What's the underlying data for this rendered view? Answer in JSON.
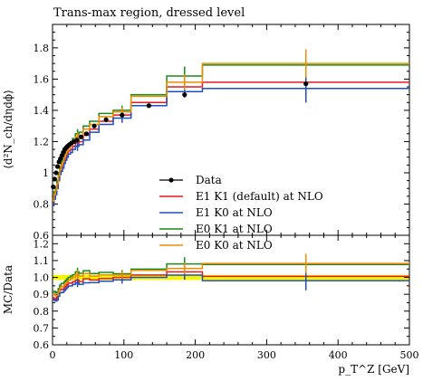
{
  "chart_data": {
    "type": "line",
    "title": "Trans-max region, dressed level",
    "ylabel_main": "⟨d²N_ch/dηdϕ⟩",
    "ylabel_ratio": "MC/Data",
    "xlabel": "p_T^Z [GeV]",
    "xlim": [
      0,
      500
    ],
    "ylim_main": [
      0.6,
      1.95
    ],
    "ylim_ratio": [
      0.6,
      1.25
    ],
    "x_ticks": [
      "0",
      "100",
      "200",
      "300",
      "400",
      "500"
    ],
    "y_ticks_main": [
      "0.6",
      "0.8",
      "1",
      "1.2",
      "1.4",
      "1.6",
      "1.8"
    ],
    "y_ticks_ratio": [
      "0.6",
      "0.7",
      "0.8",
      "0.9",
      "1.0",
      "1.1",
      "1.2"
    ],
    "legend_position": "lower-right",
    "bin_edges": [
      0,
      2,
      4,
      6,
      8,
      10,
      12,
      14,
      16,
      18,
      20,
      22,
      25,
      28,
      32,
      37,
      43,
      52,
      65,
      85,
      110,
      160,
      210,
      500
    ],
    "data": {
      "name": "Data",
      "color": "#000000",
      "x": [
        1,
        3,
        5,
        7,
        9,
        11,
        13,
        15,
        17,
        19,
        21,
        23.5,
        26.5,
        30,
        34.5,
        40,
        47.5,
        58.5,
        75,
        97.5,
        135,
        185,
        355
      ],
      "y": [
        0.91,
        0.96,
        1.0,
        1.04,
        1.07,
        1.09,
        1.11,
        1.13,
        1.15,
        1.16,
        1.17,
        1.18,
        1.19,
        1.2,
        1.21,
        1.23,
        1.25,
        1.3,
        1.34,
        1.37,
        1.43,
        1.5,
        1.57
      ]
    },
    "series": [
      {
        "name": "E1 K1 (default) at NLO",
        "color": "#e41a1c",
        "values": [
          0.8,
          0.84,
          0.87,
          0.92,
          0.97,
          1.01,
          1.03,
          1.05,
          1.08,
          1.1,
          1.12,
          1.14,
          1.15,
          1.17,
          1.19,
          1.2,
          1.24,
          1.28,
          1.33,
          1.37,
          1.45,
          1.55,
          1.58
        ],
        "error_x": [
          35,
          97.5,
          185,
          355
        ],
        "error_y": [
          0.03,
          0.03,
          0.04,
          0.06
        ]
      },
      {
        "name": "E1 K0 at NLO",
        "color": "#1f4fbf",
        "values": [
          0.79,
          0.83,
          0.86,
          0.9,
          0.95,
          0.99,
          1.01,
          1.03,
          1.06,
          1.08,
          1.1,
          1.12,
          1.13,
          1.15,
          1.17,
          1.18,
          1.21,
          1.26,
          1.31,
          1.35,
          1.43,
          1.52,
          1.54
        ],
        "error_x": [
          35,
          97.5,
          185,
          355
        ],
        "error_y": [
          0.03,
          0.03,
          0.04,
          0.09
        ]
      },
      {
        "name": "E0 K1 at NLO",
        "color": "#1a8a1a",
        "values": [
          0.83,
          0.88,
          0.91,
          0.95,
          1.0,
          1.04,
          1.07,
          1.09,
          1.12,
          1.14,
          1.16,
          1.18,
          1.2,
          1.22,
          1.25,
          1.26,
          1.3,
          1.33,
          1.38,
          1.4,
          1.5,
          1.62,
          1.69
        ],
        "error_x": [
          35,
          97.5,
          185,
          355
        ],
        "error_y": [
          0.03,
          0.03,
          0.06,
          0.07
        ]
      },
      {
        "name": "E0 K0 at NLO",
        "color": "#f08c00",
        "values": [
          0.82,
          0.86,
          0.89,
          0.93,
          0.98,
          1.02,
          1.05,
          1.07,
          1.1,
          1.12,
          1.14,
          1.16,
          1.18,
          1.2,
          1.23,
          1.24,
          1.28,
          1.31,
          1.36,
          1.39,
          1.49,
          1.58,
          1.7
        ],
        "error_x": [
          35,
          97.5,
          185,
          355
        ],
        "error_y": [
          0.03,
          0.03,
          0.05,
          0.09
        ]
      }
    ],
    "ratio_band": {
      "color": "#f5f500",
      "low": 0.985,
      "high": 1.015
    }
  }
}
